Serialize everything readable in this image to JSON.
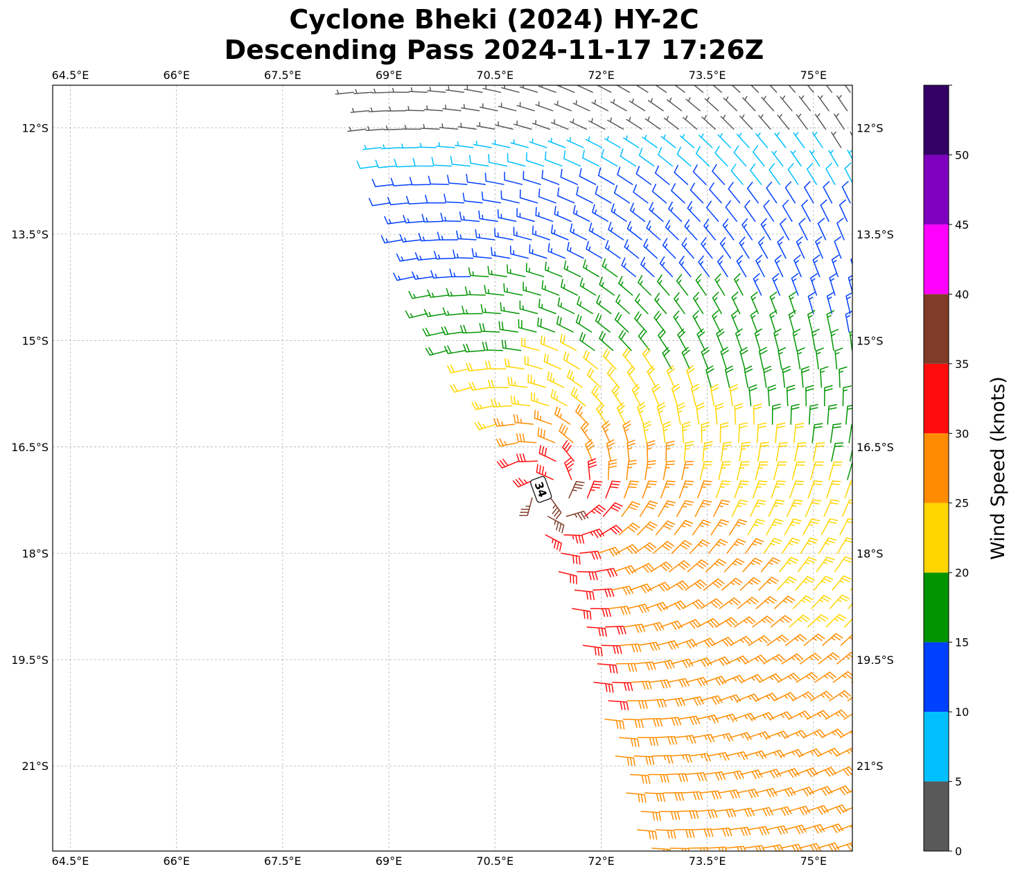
{
  "chart_data": {
    "type": "wind-barb-map",
    "title_line1": "Cyclone Bheki (2024) HY-2C",
    "title_line2": "Descending Pass 2024-11-17 17:26Z",
    "lon_ticks": [
      "64.5°E",
      "66°E",
      "67.5°E",
      "69°E",
      "70.5°E",
      "72°E",
      "73.5°E",
      "75°E"
    ],
    "lon_values": [
      64.5,
      66,
      67.5,
      69,
      70.5,
      72,
      73.5,
      75
    ],
    "lat_ticks": [
      "12°S",
      "13.5°S",
      "15°S",
      "16.5°S",
      "18°S",
      "19.5°S",
      "21°S"
    ],
    "lat_values": [
      -12,
      -13.5,
      -15,
      -16.5,
      -18,
      -19.5,
      -21
    ],
    "xlim": [
      64.25,
      75.55
    ],
    "ylim": [
      -22.2,
      -11.4
    ],
    "grid": true,
    "colorbar": {
      "label": "Wind Speed (knots)",
      "ticks": [
        "0",
        "5",
        "10",
        "15",
        "20",
        "25",
        "30",
        "35",
        "40",
        "45",
        "50"
      ],
      "bounds": [
        0,
        5,
        10,
        15,
        20,
        25,
        30,
        35,
        40,
        45,
        50,
        55
      ],
      "colors": [
        "#595959",
        "#00bfff",
        "#0040ff",
        "#009500",
        "#ffd500",
        "#ff8c00",
        "#ff0d0d",
        "#803c28",
        "#ff00ff",
        "#8000bf",
        "#330066"
      ]
    },
    "center_annotation": {
      "label": "34",
      "lon": 71.15,
      "lat": -17.1
    },
    "circulation_center": {
      "lon": 71.3,
      "lat": -17.2
    },
    "swath_west_edge": [
      [
        68.5,
        -11.5
      ],
      [
        69.6,
        -14.8
      ],
      [
        70.8,
        -16.6
      ],
      [
        71.6,
        -18.8
      ],
      [
        72.6,
        -22.2
      ]
    ],
    "wind_bands_knots": [
      {
        "range": "5-10",
        "region": "north (12-13°S), west and east edges"
      },
      {
        "range": "10-15",
        "region": "north-central and eastern edge"
      },
      {
        "range": "15-20",
        "region": "ring around center, 13.5-16.5°S and band to 18°S east"
      },
      {
        "range": "20-25",
        "region": "inner ring and southern half"
      },
      {
        "range": "25-30",
        "region": "near center and south of 19.5°S"
      },
      {
        "range": "30-35",
        "region": "eyewall west/southwest of center"
      },
      {
        "range": "35-40",
        "region": "max point near center"
      }
    ]
  }
}
